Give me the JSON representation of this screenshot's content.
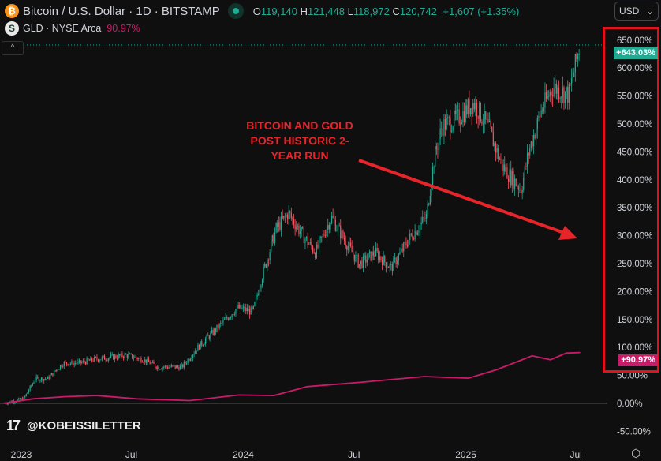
{
  "header": {
    "symbol": "Bitcoin / U.S. Dollar · 1D · BITSTAMP",
    "open_label": "O",
    "open": "119,140",
    "high_label": "H",
    "high": "121,448",
    "low_label": "L",
    "low": "118,972",
    "close_label": "C",
    "close": "120,742",
    "change": "+1,607 (+1.35%)",
    "compare_symbol": "GLD · NYSE Arca",
    "compare_value": "90.97%",
    "currency": "USD"
  },
  "annotation": "BITCOIN AND GOLD POST HISTORIC 2-YEAR RUN",
  "watermark": "@KOBEISSILETTER",
  "colors": {
    "btc_up": "#22ab94",
    "btc_down": "#f7525f",
    "gld": "#cc1a6b",
    "annotation": "#e8242b",
    "highlight_box": "#e0121b"
  },
  "icons": {
    "btc": "bitcoin-icon",
    "gld": "gld-icon",
    "status": "market-open-dot-icon",
    "collapse": "chevron-up-icon",
    "currency": "chevron-down-icon",
    "settings": "settings-hexagon-icon"
  },
  "chart_data": {
    "type": "line",
    "y_axis": {
      "scale": "percent",
      "ylim": [
        -50,
        650
      ],
      "ticks": [
        "650.00%",
        "600.00%",
        "550.00%",
        "500.00%",
        "450.00%",
        "400.00%",
        "350.00%",
        "300.00%",
        "250.00%",
        "200.00%",
        "150.00%",
        "100.00%",
        "50.00%",
        "0.00%",
        "-50.00%"
      ]
    },
    "x_axis": {
      "ticks": [
        {
          "label": "2023",
          "date": "2023-01-01"
        },
        {
          "label": "Jul",
          "date": "2023-07-01"
        },
        {
          "label": "2024",
          "date": "2024-01-01"
        },
        {
          "label": "Jul",
          "date": "2024-07-01"
        },
        {
          "label": "2025",
          "date": "2025-01-01"
        },
        {
          "label": "Jul",
          "date": "2025-07-01"
        }
      ]
    },
    "series": [
      {
        "name": "Bitcoin / U.S. Dollar",
        "style": "candles",
        "last_label": "+643.03%",
        "points": [
          [
            "2022-12-03",
            0
          ],
          [
            "2023-01-05",
            8
          ],
          [
            "2023-01-24",
            44
          ],
          [
            "2023-02-13",
            44
          ],
          [
            "2023-03-11",
            72
          ],
          [
            "2023-04-06",
            72
          ],
          [
            "2023-05-02",
            79
          ],
          [
            "2023-06-23",
            86
          ],
          [
            "2023-07-19",
            79
          ],
          [
            "2023-08-14",
            65
          ],
          [
            "2023-09-22",
            65
          ],
          [
            "2023-10-18",
            100
          ],
          [
            "2023-11-13",
            128
          ],
          [
            "2023-12-22",
            171
          ],
          [
            "2024-01-17",
            164
          ],
          [
            "2024-01-30",
            220
          ],
          [
            "2024-02-24",
            312
          ],
          [
            "2024-03-15",
            340
          ],
          [
            "2024-04-10",
            298
          ],
          [
            "2024-04-29",
            270
          ],
          [
            "2024-05-25",
            333
          ],
          [
            "2024-06-20",
            284
          ],
          [
            "2024-07-10",
            249
          ],
          [
            "2024-08-05",
            270
          ],
          [
            "2024-08-31",
            242
          ],
          [
            "2024-10-02",
            298
          ],
          [
            "2024-10-28",
            333
          ],
          [
            "2024-11-10",
            439
          ],
          [
            "2024-11-23",
            496
          ],
          [
            "2024-12-19",
            510
          ],
          [
            "2025-01-14",
            538
          ],
          [
            "2025-02-09",
            489
          ],
          [
            "2025-03-01",
            425
          ],
          [
            "2025-04-02",
            383
          ],
          [
            "2025-04-15",
            453
          ],
          [
            "2025-05-05",
            524
          ],
          [
            "2025-05-24",
            566
          ],
          [
            "2025-06-19",
            552
          ],
          [
            "2025-07-08",
            643
          ]
        ]
      },
      {
        "name": "GLD · NYSE Arca",
        "style": "line",
        "last_label": "+90.97%",
        "points": [
          [
            "2022-12-03",
            0
          ],
          [
            "2023-01-20",
            8
          ],
          [
            "2023-03-15",
            12
          ],
          [
            "2023-05-05",
            14
          ],
          [
            "2023-07-10",
            8
          ],
          [
            "2023-10-05",
            5
          ],
          [
            "2023-12-25",
            15
          ],
          [
            "2024-02-20",
            14
          ],
          [
            "2024-04-15",
            30
          ],
          [
            "2024-07-15",
            38
          ],
          [
            "2024-10-25",
            48
          ],
          [
            "2025-01-05",
            45
          ],
          [
            "2025-02-20",
            60
          ],
          [
            "2025-04-20",
            85
          ],
          [
            "2025-05-20",
            78
          ],
          [
            "2025-06-15",
            90
          ],
          [
            "2025-07-08",
            91
          ]
        ]
      }
    ]
  }
}
